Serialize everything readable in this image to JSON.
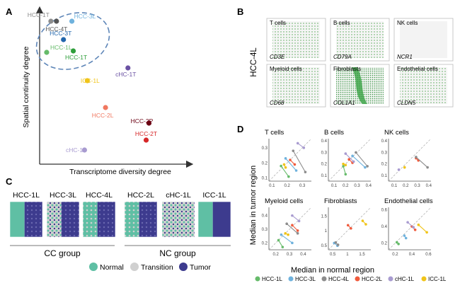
{
  "panels": {
    "A": {
      "letter": "A",
      "xlabel": "Transcriptome diversity degree",
      "ylabel": "Spatial continuity degree",
      "points": [
        {
          "label": "HCC-1T",
          "color": "#8c8c8c"
        },
        {
          "label": "HCC-4T",
          "color": "#555555"
        },
        {
          "label": "HCC-3L",
          "color": "#6fb2dd"
        },
        {
          "label": "HCC-3T",
          "color": "#2166ac"
        },
        {
          "label": "HCC-1L",
          "color": "#66bb6a"
        },
        {
          "label": "HCC-1T",
          "color": "#2e9e3a"
        },
        {
          "label": "cHC-1T",
          "color": "#6a51a3"
        },
        {
          "label": "ICC-1L",
          "color": "#f0c419"
        },
        {
          "label": "HCC-2L",
          "color": "#f07860"
        },
        {
          "label": "HCC-2P",
          "color": "#6b0012"
        },
        {
          "label": "HCC-2T",
          "color": "#d62728"
        },
        {
          "label": "cHC-1L",
          "color": "#a89bd0"
        }
      ]
    },
    "B": {
      "letter": "B",
      "sample": "HCC-4L",
      "tiles": [
        {
          "cell": "T cells",
          "gene": "CD3E"
        },
        {
          "cell": "B cells",
          "gene": "CD79A"
        },
        {
          "cell": "NK cells",
          "gene": "NCR1"
        },
        {
          "cell": "Myeloid cells",
          "gene": "CD68"
        },
        {
          "cell": "Fibroblasts",
          "gene": "COL1A1"
        },
        {
          "cell": "Endothelial cells",
          "gene": "CLDN5"
        }
      ]
    },
    "C": {
      "letter": "C",
      "samples": [
        "HCC-1L",
        "HCC-3L",
        "HCC-4L",
        "HCC-2L",
        "cHC-1L",
        "ICC-1L"
      ],
      "groups": [
        "CC group",
        "NC group"
      ],
      "legend": [
        {
          "label": "Normal",
          "color": "#5fbfa4"
        },
        {
          "label": "Transition",
          "color": "#d0d0d0"
        },
        {
          "label": "Tumor",
          "color": "#3d3b8e"
        }
      ]
    },
    "D": {
      "letter": "D",
      "ylabel": "Median in tumor region",
      "xlabel": "Median in normal region",
      "legend": [
        {
          "label": "HCC-1L",
          "color": "#66bb6a"
        },
        {
          "label": "HCC-3L",
          "color": "#6fb2dd"
        },
        {
          "label": "HCC-4L",
          "color": "#8c8c8c"
        },
        {
          "label": "HCC-2L",
          "color": "#f05a3c"
        },
        {
          "label": "cHC-1L",
          "color": "#a89bd0"
        },
        {
          "label": "ICC-1L",
          "color": "#f0c419"
        }
      ]
    }
  },
  "chart_data": [
    {
      "type": "scatter",
      "xlabel": "Transcriptome diversity degree",
      "ylabel": "Spatial continuity degree",
      "note": "unitless; axis has no tick labels",
      "points": [
        {
          "label": "HCC-1T",
          "x": 0.06,
          "y": 0.96
        },
        {
          "label": "HCC-4T",
          "x": 0.1,
          "y": 0.96
        },
        {
          "label": "HCC-3L",
          "x": 0.21,
          "y": 0.96
        },
        {
          "label": "HCC-3T",
          "x": 0.15,
          "y": 0.83
        },
        {
          "label": "HCC-1L",
          "x": 0.03,
          "y": 0.74
        },
        {
          "label": "HCC-1T",
          "x": 0.22,
          "y": 0.75
        },
        {
          "label": "cHC-1T",
          "x": 0.61,
          "y": 0.63
        },
        {
          "label": "ICC-1L",
          "x": 0.32,
          "y": 0.54
        },
        {
          "label": "HCC-2L",
          "x": 0.45,
          "y": 0.35
        },
        {
          "label": "HCC-2P",
          "x": 0.76,
          "y": 0.24
        },
        {
          "label": "HCC-2T",
          "x": 0.74,
          "y": 0.12
        },
        {
          "label": "cHC-1L",
          "x": 0.3,
          "y": 0.05
        }
      ]
    },
    {
      "type": "scatter",
      "panels": [
        {
          "title": "T cells",
          "xticks": [
            0.1,
            0.2,
            0.3
          ],
          "yticks": [
            0.1,
            0.2,
            0.3
          ],
          "xlim": [
            0.08,
            0.36
          ],
          "ylim": [
            0.08,
            0.36
          ],
          "pairs": [
            {
              "sample": "HCC-1L",
              "normal": [
                0.16,
                0.18
              ],
              "tumor": [
                0.21,
                0.11
              ]
            },
            {
              "sample": "HCC-3L",
              "normal": [
                0.19,
                0.23
              ],
              "tumor": [
                0.26,
                0.15
              ]
            },
            {
              "sample": "HCC-4L",
              "normal": [
                0.24,
                0.28
              ],
              "tumor": [
                0.32,
                0.14
              ]
            },
            {
              "sample": "HCC-2L",
              "normal": [
                0.22,
                0.22
              ],
              "tumor": [
                0.25,
                0.19
              ]
            },
            {
              "sample": "cHC-1L",
              "normal": [
                0.27,
                0.33
              ],
              "tumor": [
                0.31,
                0.3
              ]
            },
            {
              "sample": "ICC-1L",
              "normal": [
                0.18,
                0.19
              ],
              "tumor": [
                0.19,
                0.17
              ]
            }
          ]
        },
        {
          "title": "B cells",
          "xticks": [
            0.1,
            0.2,
            0.3,
            0.4
          ],
          "yticks": [
            0.1,
            0.2,
            0.3,
            0.4
          ],
          "xlim": [
            0.05,
            0.42
          ],
          "ylim": [
            0.05,
            0.42
          ],
          "pairs": [
            {
              "sample": "HCC-1L",
              "normal": [
                0.18,
                0.18
              ],
              "tumor": [
                0.2,
                0.11
              ]
            },
            {
              "sample": "HCC-3L",
              "normal": [
                0.26,
                0.27
              ],
              "tumor": [
                0.37,
                0.17
              ]
            },
            {
              "sample": "HCC-4L",
              "normal": [
                0.29,
                0.3
              ],
              "tumor": [
                0.39,
                0.18
              ]
            },
            {
              "sample": "HCC-2L",
              "normal": [
                0.23,
                0.24
              ],
              "tumor": [
                0.26,
                0.21
              ]
            },
            {
              "sample": "cHC-1L",
              "normal": [
                0.2,
                0.29
              ],
              "tumor": [
                0.27,
                0.22
              ]
            },
            {
              "sample": "ICC-1L",
              "normal": [
                0.18,
                0.2
              ],
              "tumor": [
                0.2,
                0.19
              ]
            }
          ]
        },
        {
          "title": "NK cells",
          "xticks": [
            0.1,
            0.2,
            0.3,
            0.4
          ],
          "yticks": [
            0.1,
            0.2,
            0.3,
            0.4
          ],
          "xlim": [
            0.05,
            0.42
          ],
          "ylim": [
            0.05,
            0.42
          ],
          "pairs": [
            {
              "sample": "HCC-2L",
              "normal": [
                0.29,
                0.25
              ],
              "tumor": [
                0.31,
                0.23
              ]
            },
            {
              "sample": "HCC-4L",
              "normal": [
                0.29,
                0.26
              ],
              "tumor": [
                0.39,
                0.17
              ]
            },
            {
              "sample": "cHC-1L",
              "normal": [
                0.14,
                0.15
              ],
              "tumor": [
                0.14,
                0.15
              ]
            },
            {
              "sample": "ICC-1L",
              "normal": [
                0.19,
                0.17
              ],
              "tumor": [
                0.19,
                0.17
              ]
            }
          ]
        },
        {
          "title": "Myeloid cells",
          "xticks": [
            0.2,
            0.3,
            0.4
          ],
          "yticks": [
            0.2,
            0.3,
            0.4
          ],
          "xlim": [
            0.15,
            0.46
          ],
          "ylim": [
            0.15,
            0.46
          ],
          "pairs": [
            {
              "sample": "HCC-1L",
              "normal": [
                0.22,
                0.22
              ],
              "tumor": [
                0.25,
                0.17
              ]
            },
            {
              "sample": "HCC-3L",
              "normal": [
                0.24,
                0.26
              ],
              "tumor": [
                0.32,
                0.2
              ]
            },
            {
              "sample": "HCC-4L",
              "normal": [
                0.28,
                0.34
              ],
              "tumor": [
                0.36,
                0.27
              ]
            },
            {
              "sample": "HCC-2L",
              "normal": [
                0.32,
                0.33
              ],
              "tumor": [
                0.36,
                0.29
              ]
            },
            {
              "sample": "cHC-1L",
              "normal": [
                0.32,
                0.4
              ],
              "tumor": [
                0.37,
                0.36
              ]
            },
            {
              "sample": "ICC-1L",
              "normal": [
                0.27,
                0.27
              ],
              "tumor": [
                0.29,
                0.26
              ]
            }
          ]
        },
        {
          "title": "Fibroblasts",
          "xticks": [
            0.5,
            1.0,
            1.5
          ],
          "yticks": [
            0.5,
            1.0,
            1.5
          ],
          "xlim": [
            0.35,
            1.8
          ],
          "ylim": [
            0.35,
            1.8
          ],
          "pairs": [
            {
              "sample": "HCC-3L",
              "normal": [
                0.55,
                0.58
              ],
              "tumor": [
                0.66,
                0.49
              ]
            },
            {
              "sample": "HCC-4L",
              "normal": [
                0.6,
                0.6
              ],
              "tumor": [
                0.68,
                0.52
              ]
            },
            {
              "sample": "HCC-2L",
              "normal": [
                1.02,
                1.19
              ],
              "tumor": [
                1.12,
                1.08
              ]
            },
            {
              "sample": "ICC-1L",
              "normal": [
                1.52,
                1.34
              ],
              "tumor": [
                1.63,
                1.22
              ]
            }
          ]
        },
        {
          "title": "Endothelial cells",
          "xticks": [
            0.2,
            0.4,
            0.6
          ],
          "yticks": [
            0.2,
            0.4,
            0.6
          ],
          "xlim": [
            0.12,
            0.63
          ],
          "ylim": [
            0.12,
            0.63
          ],
          "pairs": [
            {
              "sample": "HCC-1L",
              "normal": [
                0.22,
                0.21
              ],
              "tumor": [
                0.24,
                0.19
              ]
            },
            {
              "sample": "HCC-3L",
              "normal": [
                0.31,
                0.29
              ],
              "tumor": [
                0.33,
                0.26
              ]
            },
            {
              "sample": "HCC-2L",
              "normal": [
                0.4,
                0.4
              ],
              "tumor": [
                0.44,
                0.36
              ]
            },
            {
              "sample": "cHC-1L",
              "normal": [
                0.35,
                0.45
              ],
              "tumor": [
                0.42,
                0.39
              ]
            },
            {
              "sample": "ICC-1L",
              "normal": [
                0.48,
                0.42
              ],
              "tumor": [
                0.58,
                0.33
              ]
            }
          ]
        }
      ]
    }
  ]
}
